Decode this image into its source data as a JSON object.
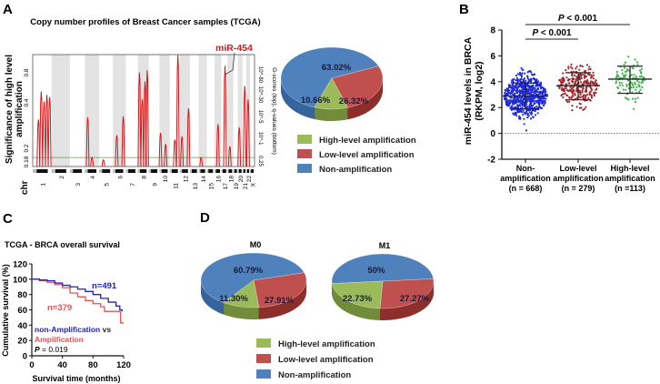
{
  "panels": {
    "a": "A",
    "b": "B",
    "c": "C",
    "d": "D"
  },
  "chart_data": [
    {
      "id": "cn-profile",
      "type": "line",
      "title": "Copy number profiles of Breast Cancer samples (TCGA)",
      "ylabel_left": [
        "Significance of high level",
        "amplification"
      ],
      "ylabel_right": "G-scores (top), q-values (bottom)",
      "xlabel": "chr",
      "yticks_left": [
        "0.8",
        "0.4",
        "0.2",
        "0.18"
      ],
      "yticks_right": [
        "10^-80",
        "10^-30",
        "10^-5",
        "10^-1",
        "0.25"
      ],
      "chromosomes": [
        "1",
        "2",
        "3",
        "4",
        "5",
        "6",
        "7",
        "8",
        "9",
        "10",
        "11",
        "12",
        "13",
        "14",
        "15",
        "16",
        "17",
        "18",
        "19",
        "20",
        "21",
        "22",
        "X"
      ],
      "annotation": "miR-454",
      "annotation_chr": "17",
      "threshold": 0.08,
      "colors": {
        "profile": "#d7191c",
        "threshold": "#6a9a3a",
        "band": "#e3e3e3"
      },
      "peaks": [
        {
          "chr": "1",
          "pos": 0.3,
          "value": 0.42
        },
        {
          "chr": "1",
          "pos": 0.45,
          "value": 0.67
        },
        {
          "chr": "1",
          "pos": 0.6,
          "value": 0.58
        },
        {
          "chr": "1",
          "pos": 0.75,
          "value": 0.64
        },
        {
          "chr": "1",
          "pos": 0.9,
          "value": 0.62
        },
        {
          "chr": "4",
          "pos": 0.2,
          "value": 0.44
        },
        {
          "chr": "4",
          "pos": 0.5,
          "value": 0.08
        },
        {
          "chr": "5",
          "pos": 0.3,
          "value": 0.06
        },
        {
          "chr": "6",
          "pos": 0.3,
          "value": 0.28
        },
        {
          "chr": "6",
          "pos": 0.8,
          "value": 0.45
        },
        {
          "chr": "8",
          "pos": 0.15,
          "value": 0.84
        },
        {
          "chr": "8",
          "pos": 0.4,
          "value": 0.6
        },
        {
          "chr": "8",
          "pos": 0.65,
          "value": 0.76
        },
        {
          "chr": "8",
          "pos": 0.85,
          "value": 0.86
        },
        {
          "chr": "10",
          "pos": 0.1,
          "value": 0.3
        },
        {
          "chr": "10",
          "pos": 0.6,
          "value": 0.2
        },
        {
          "chr": "11",
          "pos": 0.5,
          "value": 0.24
        },
        {
          "chr": "11",
          "pos": 0.8,
          "value": 1.0
        },
        {
          "chr": "12",
          "pos": 0.2,
          "value": 0.27
        },
        {
          "chr": "12",
          "pos": 0.85,
          "value": 0.52
        },
        {
          "chr": "14",
          "pos": 0.3,
          "value": 0.08
        },
        {
          "chr": "16",
          "pos": 0.5,
          "value": 0.38
        },
        {
          "chr": "17",
          "pos": 0.6,
          "value": 0.9
        },
        {
          "chr": "18",
          "pos": 0.4,
          "value": 0.18
        },
        {
          "chr": "20",
          "pos": 0.3,
          "value": 0.35
        },
        {
          "chr": "21",
          "pos": 0.6,
          "value": 0.72
        },
        {
          "chr": "22",
          "pos": 0.5,
          "value": 0.6
        }
      ]
    },
    {
      "id": "pie-all",
      "type": "pie",
      "slices": [
        {
          "label": "Non-amplification",
          "value": 63.02,
          "text": "63.02%"
        },
        {
          "label": "Low-level amplification",
          "value": 26.32,
          "text": "26.32%"
        },
        {
          "label": "High-level amplification",
          "value": 10.66,
          "text": "10.66%"
        }
      ],
      "legend": [
        "High-level amplification",
        "Low-level amplification",
        "Non-amplification"
      ]
    },
    {
      "id": "mir454-scatter",
      "type": "scatter",
      "ylabel": [
        "miR-454 levels in BRCA",
        "(RKPM, log2)"
      ],
      "ylim": [
        -2,
        8
      ],
      "yticks": [
        "8",
        "6",
        "4",
        "2",
        "0",
        "-2"
      ],
      "groups": [
        {
          "label": [
            "Non-",
            "amplification",
            "(n = 668)"
          ],
          "n": 668,
          "mean": 2.9,
          "sd_low": 1.9,
          "sd_high": 3.9,
          "min": -0.9,
          "max": 6.4,
          "color": "#1f2bd6"
        },
        {
          "label": [
            "Low-level",
            "amplification",
            "(n = 279)"
          ],
          "n": 279,
          "mean": 3.7,
          "sd_low": 2.6,
          "sd_high": 4.7,
          "min": -0.1,
          "max": 6.9,
          "color": "#a0272d"
        },
        {
          "label": [
            "High-level",
            "amplification",
            "(n =113)"
          ],
          "n": 113,
          "mean": 4.2,
          "sd_low": 3.1,
          "sd_high": 5.2,
          "min": 1.5,
          "max": 7.3,
          "color": "#3cb449"
        }
      ],
      "comparisons": [
        {
          "text_italic": "P",
          "text": " < 0.001",
          "from": 0,
          "to": 2
        },
        {
          "text_italic": "P",
          "text": " < 0.001",
          "from": 0,
          "to": 1
        }
      ]
    },
    {
      "id": "survival",
      "type": "line",
      "title": "TCGA - BRCA overall survival",
      "xlabel": "Survival time (months)",
      "ylabel": "Cumulative survival (%)",
      "xlim": [
        0,
        120
      ],
      "ylim": [
        0,
        120
      ],
      "xticks": [
        "0",
        "40",
        "80",
        "120"
      ],
      "yticks": [
        "0",
        "20",
        "40",
        "60",
        "80",
        "100",
        "120"
      ],
      "series": [
        {
          "name": "n=491",
          "color": "#2222c8",
          "points": [
            [
              0,
              100
            ],
            [
              10,
              99
            ],
            [
              20,
              98
            ],
            [
              30,
              95
            ],
            [
              40,
              92
            ],
            [
              50,
              90
            ],
            [
              60,
              87
            ],
            [
              70,
              84
            ],
            [
              80,
              80
            ],
            [
              90,
              75
            ],
            [
              100,
              70
            ],
            [
              110,
              65
            ],
            [
              115,
              60
            ],
            [
              118,
              58
            ]
          ]
        },
        {
          "name": "n=379",
          "color": "#e05555",
          "points": [
            [
              0,
              100
            ],
            [
              10,
              98
            ],
            [
              20,
              96
            ],
            [
              30,
              93
            ],
            [
              40,
              89
            ],
            [
              50,
              82
            ],
            [
              60,
              77
            ],
            [
              70,
              72
            ],
            [
              80,
              68
            ],
            [
              90,
              64
            ],
            [
              95,
              58
            ],
            [
              115,
              58
            ],
            [
              116,
              43
            ],
            [
              120,
              43
            ]
          ]
        }
      ],
      "legend_line1": "non-Amplification",
      "legend_vs": " vs",
      "legend_line2": "Amplification",
      "p_italic": "P",
      "p_text": " = 0.019"
    },
    {
      "id": "pie-m0",
      "type": "pie",
      "title": "M0",
      "slices": [
        {
          "label": "Non-amplification",
          "value": 60.79,
          "text": "60.79%"
        },
        {
          "label": "Low-level amplification",
          "value": 27.91,
          "text": "27.91%"
        },
        {
          "label": "High-level amplification",
          "value": 11.3,
          "text": "11.30%"
        }
      ]
    },
    {
      "id": "pie-m1",
      "type": "pie",
      "title": "M1",
      "slices": [
        {
          "label": "Non-amplification",
          "value": 50,
          "text": "50%"
        },
        {
          "label": "Low-level amplification",
          "value": 27.27,
          "text": "27.27%"
        },
        {
          "label": "High-level amplification",
          "value": 22.73,
          "text": "22.73%"
        }
      ],
      "legend": [
        "High-level amplification",
        "Low-level amplification",
        "Non-amplification"
      ]
    }
  ],
  "colors": {
    "non": "#4f81bd",
    "low": "#c0504d",
    "high": "#9bbb59",
    "non_side": "#36659c",
    "low_side": "#8e2f2c",
    "high_side": "#718c3a"
  }
}
